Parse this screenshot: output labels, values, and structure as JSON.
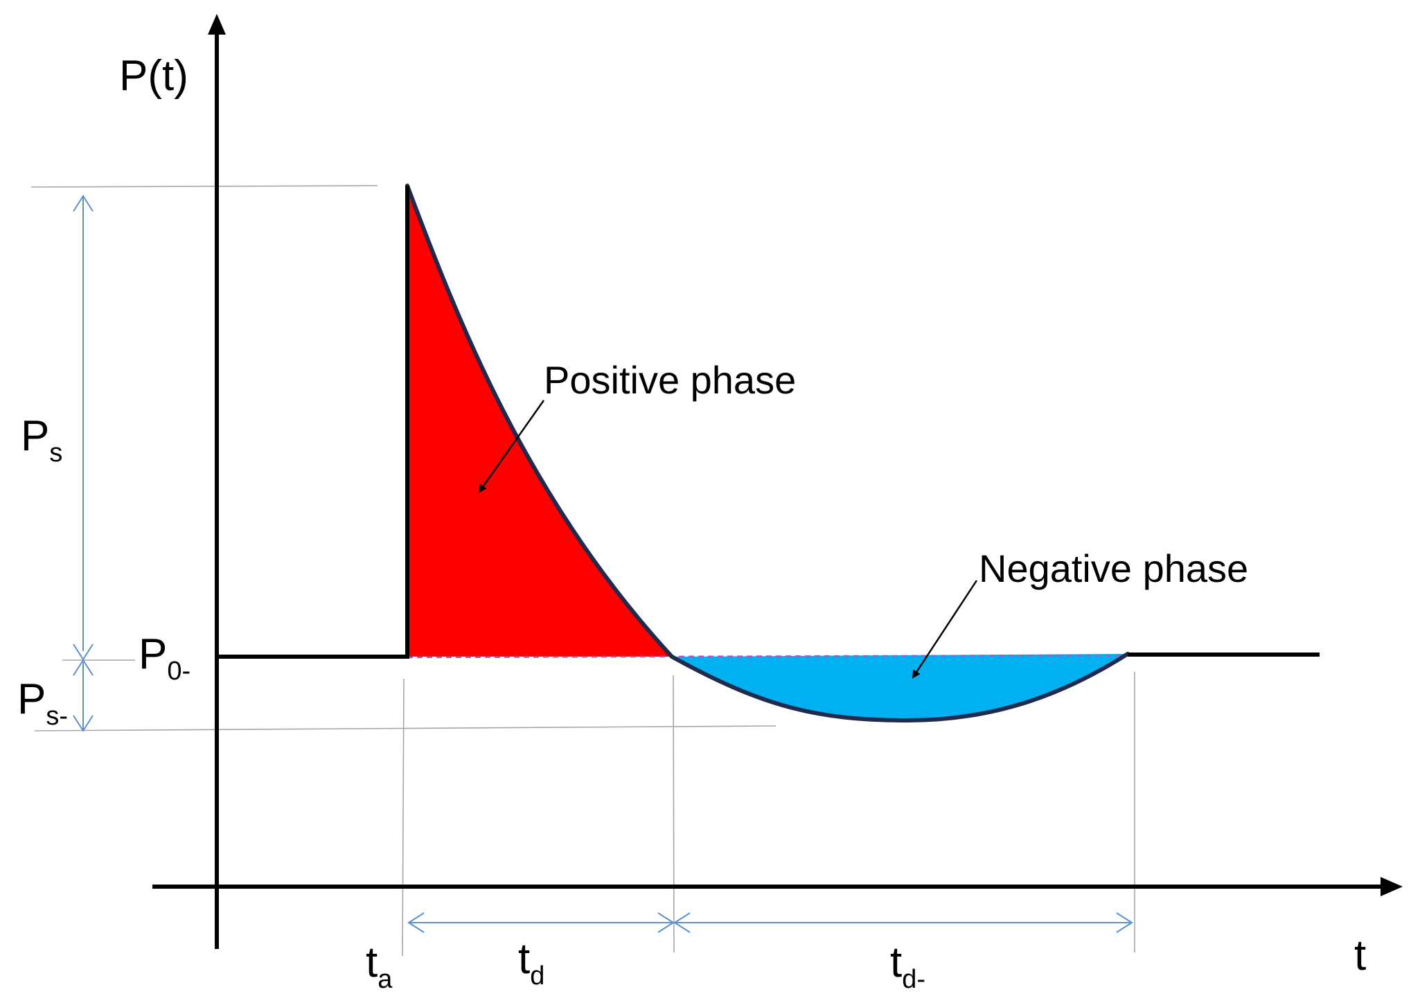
{
  "labels": {
    "y_axis": "P(t)",
    "x_axis": "t",
    "ps_main": "P",
    "ps_sub": "s",
    "p0_main": "P",
    "p0_sub": "0-",
    "psm_main": "P",
    "psm_sub": "s-",
    "ta_main": "t",
    "ta_sub": "a",
    "td_main": "t",
    "td_sub": "d",
    "tdm_main": "t",
    "tdm_sub": "d-",
    "positive_phase": "Positive phase",
    "negative_phase": "Negative phase"
  },
  "colors": {
    "positive_fill": "#ff0000",
    "negative_fill": "#00b0f0",
    "curve": "#1f2a4d",
    "axis": "#000000",
    "dimension": "#5b8fd0",
    "guide": "#a6a6a6",
    "dashed_baseline": "#9b5fc0"
  }
}
